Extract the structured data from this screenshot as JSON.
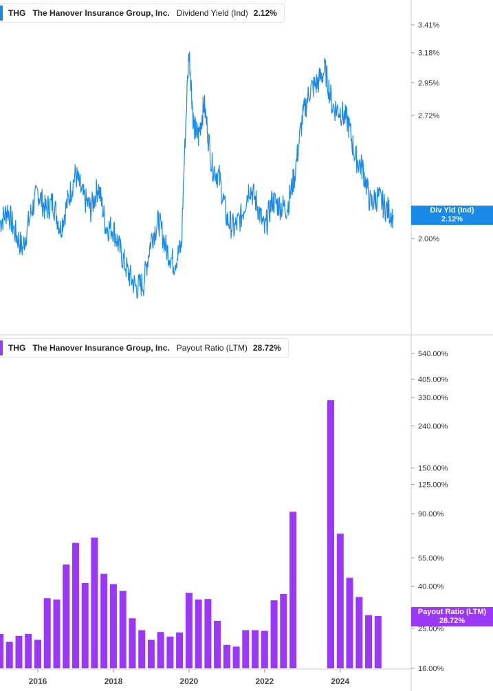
{
  "chart_data": [
    {
      "type": "line",
      "ticker": "THG",
      "company": "The Hanover Insurance Group, Inc.",
      "metric": "Dividend Yield (Ind)",
      "current_value": "2.12%",
      "tag_label": "Div Yld (Ind)",
      "color": "#1a8ae8",
      "ytick_labels": [
        "3.41%",
        "3.18%",
        "2.95%",
        "2.72%",
        "2.00%"
      ],
      "ytick_values": [
        3.41,
        3.18,
        2.95,
        2.72,
        2.0
      ],
      "y_scale": "log",
      "x": [
        2015.0,
        2015.2,
        2015.4,
        2015.6,
        2015.8,
        2016.0,
        2016.2,
        2016.4,
        2016.6,
        2016.8,
        2017.0,
        2017.2,
        2017.4,
        2017.6,
        2017.8,
        2018.0,
        2018.2,
        2018.4,
        2018.6,
        2018.8,
        2019.0,
        2019.2,
        2019.4,
        2019.6,
        2019.8,
        2020.0,
        2020.12,
        2020.25,
        2020.4,
        2020.6,
        2020.8,
        2021.0,
        2021.2,
        2021.4,
        2021.6,
        2021.8,
        2022.0,
        2022.2,
        2022.4,
        2022.6,
        2022.8,
        2023.0,
        2023.2,
        2023.4,
        2023.6,
        2023.8,
        2024.0,
        2024.2,
        2024.4,
        2024.6,
        2024.8,
        2025.0,
        2025.2,
        2025.4
      ],
      "y": [
        2.08,
        2.15,
        2.03,
        1.95,
        2.12,
        2.25,
        2.15,
        2.19,
        2.05,
        2.2,
        2.35,
        2.22,
        2.15,
        2.28,
        2.06,
        2.05,
        1.93,
        1.83,
        1.77,
        1.79,
        2.0,
        2.09,
        1.95,
        1.88,
        1.96,
        3.2,
        2.65,
        2.58,
        2.8,
        2.4,
        2.33,
        2.1,
        2.05,
        2.12,
        2.28,
        2.18,
        2.04,
        2.2,
        2.17,
        2.16,
        2.35,
        2.7,
        2.9,
        2.95,
        3.05,
        2.78,
        2.75,
        2.68,
        2.45,
        2.38,
        2.18,
        2.22,
        2.16,
        2.12
      ],
      "markers": []
    },
    {
      "type": "bar",
      "ticker": "THG",
      "company": "The Hanover Insurance Group, Inc.",
      "metric": "Payout Ratio (LTM)",
      "current_value": "28.72%",
      "tag_label": "Payout Ratio (LTM)",
      "color": "#9b37f7",
      "ytick_labels": [
        "540.00%",
        "405.00%",
        "330.00%",
        "240.00%",
        "150.00%",
        "125.00%",
        "90.00%",
        "55.00%",
        "40.00%",
        "25.00%",
        "16.00%"
      ],
      "ytick_values": [
        540,
        405,
        330,
        240,
        150,
        125,
        90,
        55,
        40,
        25,
        16
      ],
      "y_scale": "log",
      "x": [
        2015.0,
        2015.25,
        2015.5,
        2015.75,
        2016.0,
        2016.25,
        2016.5,
        2016.75,
        2017.0,
        2017.25,
        2017.5,
        2017.75,
        2018.0,
        2018.25,
        2018.5,
        2018.75,
        2019.0,
        2019.25,
        2019.5,
        2019.75,
        2020.0,
        2020.25,
        2020.5,
        2020.75,
        2021.0,
        2021.25,
        2021.5,
        2021.75,
        2022.0,
        2022.25,
        2022.5,
        2022.75,
        2023.0,
        2023.25,
        2023.5,
        2023.75,
        2024.0,
        2024.25,
        2024.5,
        2024.75,
        2025.0,
        2025.25
      ],
      "values": [
        23.5,
        21.5,
        23.0,
        23.5,
        22.0,
        35.0,
        34.5,
        51.0,
        65.0,
        41.5,
        69.0,
        46.0,
        41.0,
        38.0,
        28.0,
        24.5,
        22.0,
        24.0,
        22.8,
        23.9,
        37.2,
        34.5,
        34.7,
        27.2,
        20.8,
        20.4,
        24.5,
        24.5,
        24.3,
        34.2,
        36.7,
        92.0,
        null,
        null,
        null,
        320.0,
        72.0,
        44.0,
        35.5,
        29.0,
        28.72,
        null
      ],
      "markers": []
    }
  ],
  "x_axis": {
    "tick_labels": [
      "2016",
      "2018",
      "2020",
      "2022",
      "2024"
    ],
    "tick_values": [
      2016,
      2018,
      2020,
      2022,
      2024
    ]
  }
}
